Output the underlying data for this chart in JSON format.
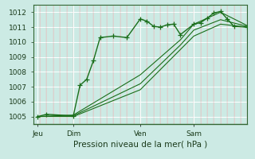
{
  "title": "",
  "xlabel": "Pression niveau de la mer( hPa )",
  "ylabel": "",
  "background_color": "#cceae4",
  "plot_bg_color": "#cceae4",
  "grid_color": "#ffffff",
  "line_color": "#1a6e1a",
  "xlim": [
    0,
    96
  ],
  "ylim": [
    1004.5,
    1012.5
  ],
  "yticks": [
    1005,
    1006,
    1007,
    1008,
    1009,
    1010,
    1011,
    1012
  ],
  "xtick_positions": [
    2,
    18,
    48,
    72
  ],
  "xtick_labels": [
    "Jeu",
    "Dim",
    "Ven",
    "Sam"
  ],
  "vlines": [
    2,
    18,
    48,
    72
  ],
  "series1_x": [
    2,
    6,
    18,
    21,
    24,
    27,
    30,
    36,
    42,
    48,
    51,
    54,
    57,
    60,
    63,
    66,
    72,
    75,
    78,
    81,
    84,
    87,
    90,
    96
  ],
  "series1_y": [
    1005.0,
    1005.15,
    1005.05,
    1007.1,
    1007.5,
    1008.75,
    1010.3,
    1010.4,
    1010.3,
    1011.55,
    1011.4,
    1011.05,
    1011.0,
    1011.15,
    1011.2,
    1010.5,
    1011.2,
    1011.3,
    1011.6,
    1011.95,
    1012.05,
    1011.55,
    1011.05,
    1011.0
  ],
  "series2_x": [
    2,
    18,
    48,
    66,
    72,
    84,
    96
  ],
  "series2_y": [
    1005.0,
    1005.1,
    1007.8,
    1010.15,
    1011.2,
    1012.0,
    1011.1
  ],
  "series3_x": [
    2,
    18,
    48,
    66,
    72,
    84,
    96
  ],
  "series3_y": [
    1005.0,
    1005.05,
    1007.2,
    1009.8,
    1010.8,
    1011.5,
    1011.05
  ],
  "series4_x": [
    2,
    18,
    48,
    66,
    72,
    84,
    96
  ],
  "series4_y": [
    1005.0,
    1005.0,
    1006.8,
    1009.5,
    1010.4,
    1011.2,
    1011.0
  ]
}
